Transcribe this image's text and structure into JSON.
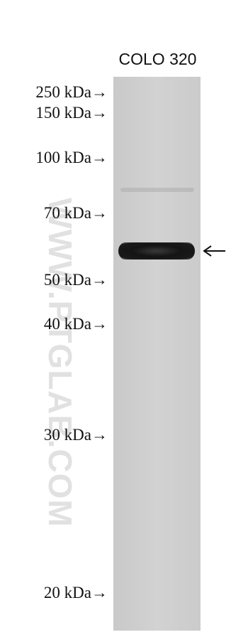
{
  "lane_label": "COLO 320",
  "markers": [
    "250 kDa→",
    "150 kDa→",
    "100 kDa→",
    "70 kDa→",
    "50 kDa→",
    "40 kDa→",
    "30 kDa→",
    "20 kDa→"
  ],
  "watermark": "WWW.PTGLAB.COM"
}
